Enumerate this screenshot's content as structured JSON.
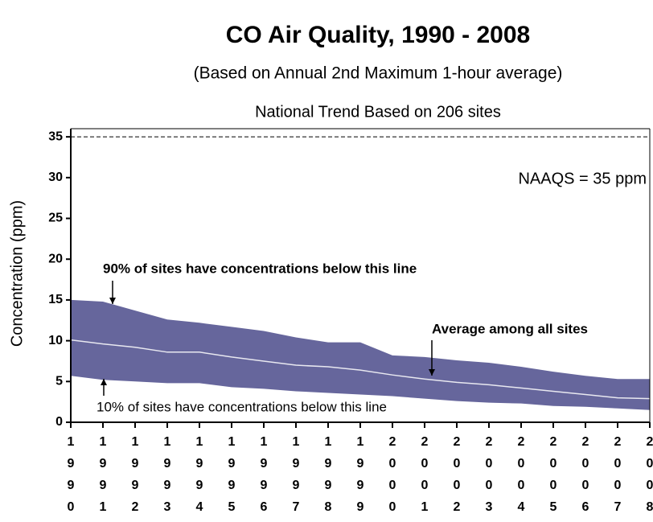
{
  "chart_data": {
    "type": "band",
    "title": "CO Air Quality, 1990 - 2008",
    "subtitle": "(Based on Annual 2nd Maximum 1-hour average)",
    "subtitle2": "National Trend Based on 206 sites",
    "y_label": "Concentration (ppm)",
    "categories": [
      "1990",
      "1991",
      "1992",
      "1993",
      "1994",
      "1995",
      "1996",
      "1997",
      "1998",
      "1999",
      "2000",
      "2001",
      "2002",
      "2003",
      "2004",
      "2005",
      "2006",
      "2007",
      "2008"
    ],
    "series": [
      {
        "color": "#66669c",
        "values": [
          15.0,
          14.8,
          13.7,
          12.6,
          12.2,
          11.7,
          11.2,
          10.4,
          9.8,
          9.8,
          8.2,
          8.0,
          7.6,
          7.3,
          6.8,
          6.2,
          5.7,
          5.3,
          5.3
        ]
      },
      {
        "color": "#e8e8f0",
        "values": [
          10.1,
          9.6,
          9.2,
          8.6,
          8.6,
          8.0,
          7.5,
          7.0,
          6.8,
          6.4,
          5.8,
          5.3,
          4.9,
          4.6,
          4.2,
          3.8,
          3.4,
          3.0,
          2.9
        ]
      },
      {
        "color": "#ffffff",
        "values": [
          5.7,
          5.2,
          5.0,
          4.8,
          4.8,
          4.3,
          4.1,
          3.8,
          3.6,
          3.4,
          3.2,
          2.9,
          2.6,
          2.4,
          2.3,
          2.0,
          1.9,
          1.7,
          1.5
        ]
      }
    ],
    "reference_line": {
      "value": 35,
      "label": "NAAQS = 35 ppm"
    },
    "annotations": [
      "90% of sites have concentrations below this line",
      "Average among all sites",
      "10% of sites have concentrations below this line"
    ],
    "ylim": [
      0,
      36
    ],
    "yticks": [
      0,
      5,
      10,
      15,
      20,
      25,
      30,
      35
    ]
  }
}
